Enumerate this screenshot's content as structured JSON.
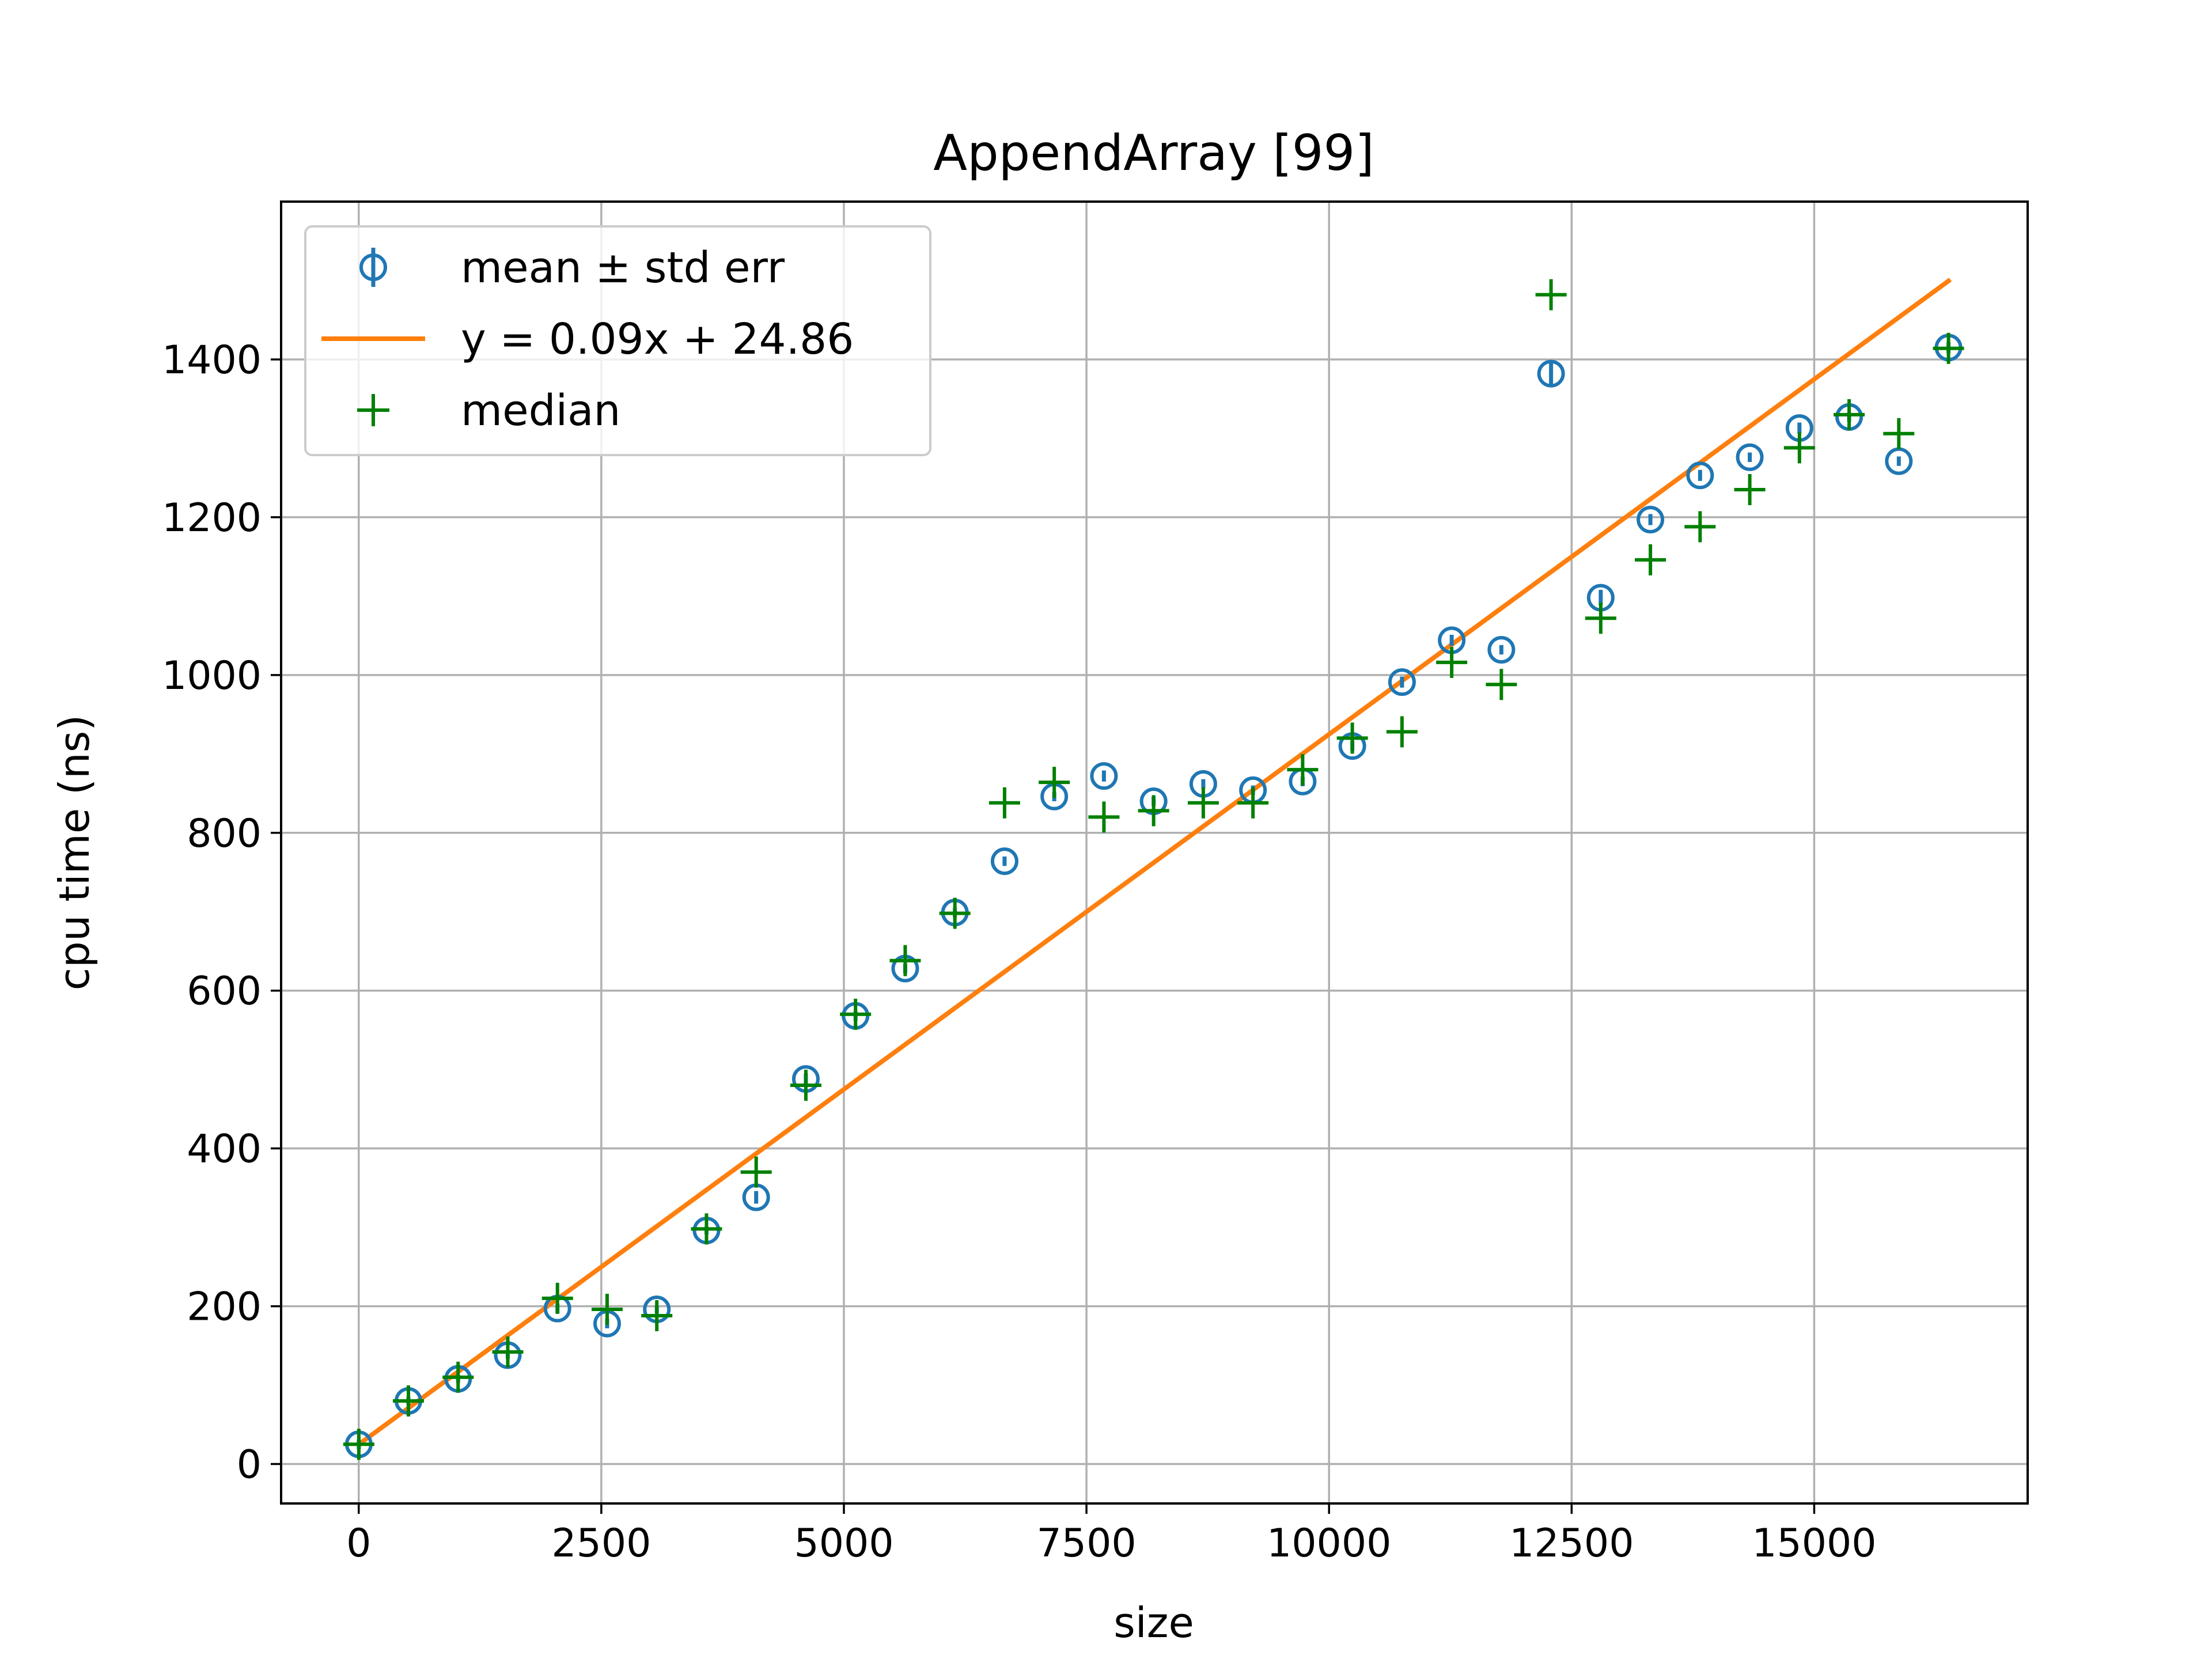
{
  "chart_data": {
    "type": "scatter",
    "title": "AppendArray [99]",
    "xlabel": "size",
    "ylabel": "cpu time (ns)",
    "xlim": [
      -800,
      17200
    ],
    "ylim": [
      -50,
      1600
    ],
    "xticks": [
      0,
      2500,
      5000,
      7500,
      10000,
      12500,
      15000
    ],
    "xtick_labels": [
      "0",
      "2500",
      "5000",
      "7500",
      "10000",
      "12500",
      "15000"
    ],
    "yticks": [
      0,
      200,
      400,
      600,
      800,
      1000,
      1200,
      1400
    ],
    "ytick_labels": [
      "0",
      "200",
      "400",
      "600",
      "800",
      "1000",
      "1200",
      "1400"
    ],
    "grid": true,
    "legend_position": "top-left",
    "series": [
      {
        "name": "mean ± std err",
        "kind": "errorbar",
        "color": "#1f77b4",
        "x": [
          1,
          512,
          1024,
          1536,
          2048,
          2560,
          3072,
          3584,
          4096,
          4608,
          5120,
          5632,
          6144,
          6656,
          7168,
          7680,
          8192,
          8704,
          9216,
          9728,
          10240,
          10752,
          11264,
          11776,
          12288,
          12800,
          13312,
          13824,
          14336,
          14848,
          15360,
          15872,
          16384
        ],
        "y": [
          25,
          80,
          108,
          138,
          197,
          178,
          196,
          296,
          338,
          488,
          568,
          628,
          699,
          764,
          846,
          872,
          840,
          862,
          854,
          865,
          910,
          991,
          1044,
          1032,
          1382,
          1098,
          1197,
          1253,
          1276,
          1313,
          1327,
          1271,
          1415
        ],
        "err": [
          6,
          5,
          5,
          5,
          6,
          6,
          5,
          5,
          8,
          7,
          6,
          6,
          6,
          6,
          6,
          7,
          6,
          6,
          6,
          6,
          6,
          7,
          7,
          6,
          14,
          10,
          7,
          7,
          6,
          7,
          6,
          6,
          7
        ]
      },
      {
        "name": "y = 0.09x + 24.86",
        "kind": "line",
        "color": "#ff7f0e",
        "slope": 0.09,
        "intercept": 24.86,
        "x": [
          1,
          16384
        ]
      },
      {
        "name": "median",
        "kind": "marker",
        "color": "#008000",
        "x": [
          1,
          512,
          1024,
          1536,
          2048,
          2560,
          3072,
          3584,
          4096,
          4608,
          5120,
          5632,
          6144,
          6656,
          7168,
          7680,
          8192,
          8704,
          9216,
          9728,
          10240,
          10752,
          11264,
          11776,
          12288,
          12800,
          13312,
          13824,
          14336,
          14848,
          15360,
          15872,
          16384
        ],
        "y": [
          25,
          80,
          110,
          142,
          210,
          196,
          188,
          298,
          370,
          480,
          570,
          638,
          698,
          838,
          864,
          820,
          828,
          838,
          838,
          880,
          920,
          928,
          1016,
          988,
          1482,
          1072,
          1146,
          1188,
          1235,
          1288,
          1330,
          1306,
          1414
        ]
      }
    ]
  }
}
